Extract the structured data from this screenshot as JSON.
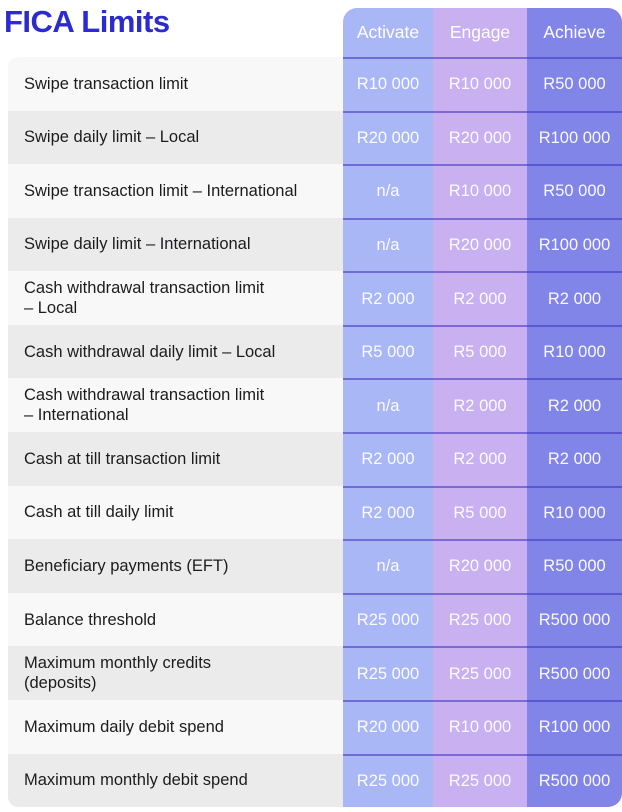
{
  "title": "FICA Limits",
  "table": {
    "columns": [
      "Activate",
      "Engage",
      "Achieve"
    ],
    "rows": [
      {
        "label": "Swipe transaction limit",
        "activate": "R10 000",
        "engage": "R10 000",
        "achieve": "R50 000"
      },
      {
        "label": "Swipe daily limit – Local",
        "activate": "R20 000",
        "engage": "R20 000",
        "achieve": "R100 000"
      },
      {
        "label": "Swipe transaction limit – International",
        "activate": "n/a",
        "engage": "R10 000",
        "achieve": "R50 000"
      },
      {
        "label": "Swipe daily limit – International",
        "activate": "n/a",
        "engage": "R20 000",
        "achieve": "R100 000"
      },
      {
        "label": "Cash withdrawal transaction limit\n– Local",
        "activate": "R2 000",
        "engage": "R2 000",
        "achieve": "R2 000"
      },
      {
        "label": "Cash withdrawal daily limit – Local",
        "activate": "R5 000",
        "engage": "R5 000",
        "achieve": "R10 000"
      },
      {
        "label": "Cash withdrawal transaction limit\n– International",
        "activate": "n/a",
        "engage": "R2 000",
        "achieve": "R2 000"
      },
      {
        "label": "Cash at till transaction limit",
        "activate": "R2 000",
        "engage": "R2 000",
        "achieve": "R2 000"
      },
      {
        "label": "Cash at till daily limit",
        "activate": "R2 000",
        "engage": "R5 000",
        "achieve": "R10 000"
      },
      {
        "label": "Beneficiary payments (EFT)",
        "activate": "n/a",
        "engage": "R20 000",
        "achieve": "R50 000"
      },
      {
        "label": "Balance threshold",
        "activate": "R25 000",
        "engage": "R25 000",
        "achieve": "R500 000"
      },
      {
        "label": "Maximum monthly credits\n(deposits)",
        "activate": "R25 000",
        "engage": "R25 000",
        "achieve": "R500 000"
      },
      {
        "label": "Maximum daily debit spend",
        "activate": "R20 000",
        "engage": "R10 000",
        "achieve": "R100 000"
      },
      {
        "label": "Maximum monthly debit spend",
        "activate": "R25 000",
        "engage": "R25 000",
        "achieve": "R500 000"
      }
    ]
  },
  "colors": {
    "title": "#2b2bd1",
    "activate": "#aab7f6",
    "engage": "#c9b0f0",
    "achieve": "#8285e8",
    "label_odd": "#f8f8f8",
    "label_even": "#ebebeb"
  }
}
